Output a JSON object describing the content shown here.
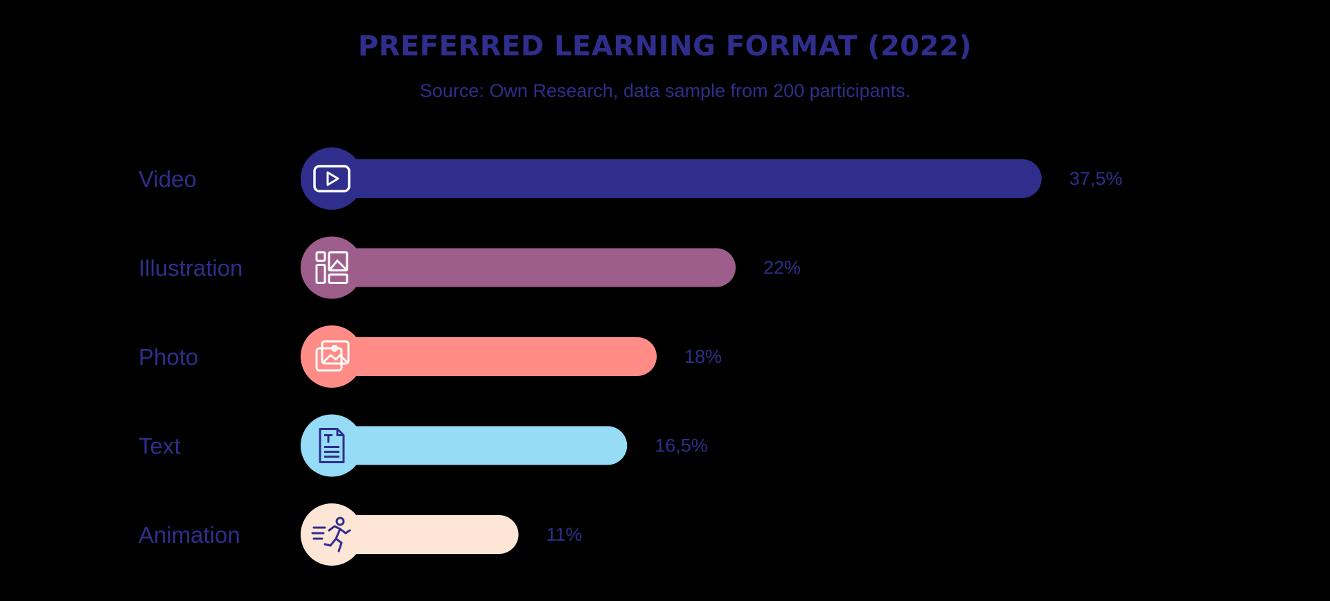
{
  "chart_data": {
    "type": "bar",
    "orientation": "horizontal",
    "title": "PREFERRED LEARNING FORMAT (2022)",
    "subtitle": "Source: Own Research, data sample from 200 participants.",
    "categories": [
      "Video",
      "Illustration",
      "Photo",
      "Text",
      "Animation"
    ],
    "values": [
      37.5,
      22,
      18,
      16.5,
      11
    ],
    "value_labels": [
      "37,5%",
      "22%",
      "18%",
      "16,5%",
      "11%"
    ],
    "icons": [
      "video-play-icon",
      "layout-gallery-icon",
      "photos-icon",
      "text-document-icon",
      "running-figure-icon"
    ],
    "colors": [
      "#2f2e8c",
      "#9e5e8c",
      "#ff8c86",
      "#96dcf7",
      "#fde6d6"
    ],
    "icon_colors": [
      "#ffffff",
      "#ffffff",
      "#ffffff",
      "#2f2e8c",
      "#2f2e8c"
    ],
    "unit": "%",
    "grid": false,
    "legend": "none"
  }
}
